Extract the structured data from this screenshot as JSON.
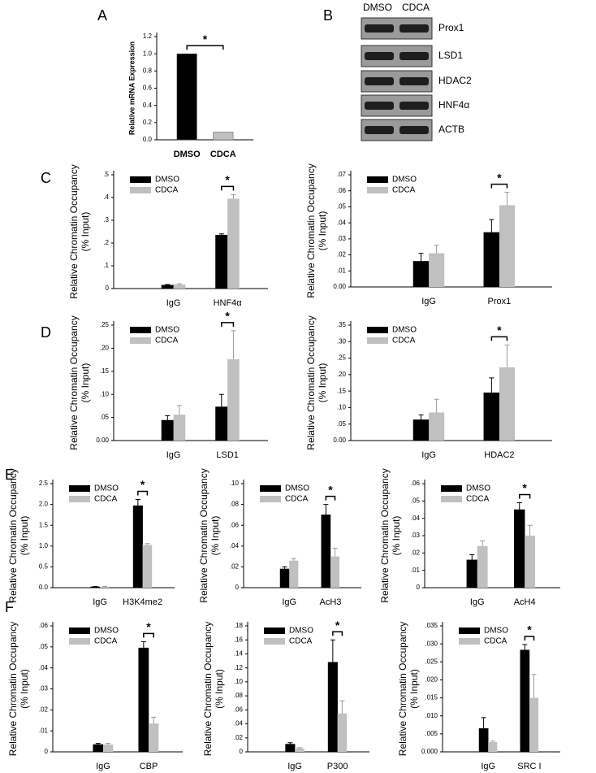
{
  "blot": {
    "panel": "B",
    "columns": [
      "DMSO",
      "CDCA"
    ],
    "rows": [
      "Prox1",
      "LSD1",
      "HDAC2",
      "HNF4α",
      "ACTB"
    ]
  },
  "chart_data": [
    {
      "type": "bar",
      "panel": "A",
      "ylabel": [
        "Relative mRNA Expression"
      ],
      "categories": [
        "DMSO",
        "CDCA"
      ],
      "values": [
        1.0,
        0.09
      ],
      "colors": [
        "#000000",
        "#c0c0c0"
      ],
      "ylim": [
        0,
        1.2
      ],
      "yticks": [
        {
          "value": 0,
          "label": "0.0"
        },
        0.2,
        0.4,
        0.6,
        0.8,
        {
          "value": 1,
          "label": "1.0"
        },
        1.2
      ],
      "annotation": "*"
    },
    {
      "type": "bar",
      "panel": "C",
      "ylabel": [
        "Relative Chromatin Occupancy",
        "(% Input)"
      ],
      "categories": [
        "IgG",
        "HNF4α"
      ],
      "series": [
        {
          "name": "DMSO",
          "color": "#000000",
          "values": [
            0.015,
            0.235
          ],
          "errors": [
            0.003,
            0.005
          ]
        },
        {
          "name": "CDCA",
          "color": "#c0c0c0",
          "values": [
            0.018,
            0.395
          ],
          "errors": [
            0.003,
            0.018
          ]
        }
      ],
      "ylim": [
        0,
        0.5
      ],
      "yticks": [
        0,
        {
          "value": 0.1,
          "label": ".1"
        },
        {
          "value": 0.2,
          "label": ".2"
        },
        {
          "value": 0.3,
          "label": ".3"
        },
        {
          "value": 0.4,
          "label": ".4"
        },
        {
          "value": 0.5,
          "label": ".5"
        }
      ],
      "annotation": "*"
    },
    {
      "type": "bar",
      "ylabel": [
        "Relative Chromatin Occupancy",
        "(% Input)"
      ],
      "categories": [
        "IgG",
        "Prox1"
      ],
      "series": [
        {
          "name": "DMSO",
          "color": "#000000",
          "values": [
            0.016,
            0.034
          ],
          "errors": [
            0.005,
            0.008
          ]
        },
        {
          "name": "CDCA",
          "color": "#c0c0c0",
          "values": [
            0.021,
            0.051
          ],
          "errors": [
            0.005,
            0.008
          ]
        }
      ],
      "ylim": [
        0,
        0.07
      ],
      "yticks": [
        {
          "value": 0,
          "label": "0.00"
        },
        {
          "value": 0.01,
          "label": ".01"
        },
        {
          "value": 0.02,
          "label": ".02"
        },
        {
          "value": 0.03,
          "label": ".03"
        },
        {
          "value": 0.04,
          "label": ".04"
        },
        {
          "value": 0.05,
          "label": ".05"
        },
        {
          "value": 0.06,
          "label": ".06"
        },
        {
          "value": 0.07,
          "label": ".07"
        }
      ],
      "annotation": "*"
    },
    {
      "type": "bar",
      "panel": "D",
      "ylabel": [
        "Relative Chromatin Occupancy",
        "(% Input)"
      ],
      "categories": [
        "IgG",
        "LSD1"
      ],
      "series": [
        {
          "name": "DMSO",
          "color": "#000000",
          "values": [
            0.044,
            0.073
          ],
          "errors": [
            0.01,
            0.027
          ]
        },
        {
          "name": "CDCA",
          "color": "#c0c0c0",
          "values": [
            0.056,
            0.176
          ],
          "errors": [
            0.02,
            0.062
          ]
        }
      ],
      "ylim": [
        0,
        0.25
      ],
      "yticks": [
        {
          "value": 0,
          "label": "0.00"
        },
        {
          "value": 0.05,
          "label": ".05"
        },
        {
          "value": 0.1,
          "label": ".10"
        },
        {
          "value": 0.15,
          "label": ".15"
        },
        {
          "value": 0.2,
          "label": ".20"
        },
        {
          "value": 0.25,
          "label": ".25"
        }
      ],
      "annotation": "*"
    },
    {
      "type": "bar",
      "ylabel": [
        "Relative Chromatin Occupancy",
        "(% Input)"
      ],
      "categories": [
        "IgG",
        "HDAC2"
      ],
      "series": [
        {
          "name": "DMSO",
          "color": "#000000",
          "values": [
            0.063,
            0.145
          ],
          "errors": [
            0.015,
            0.045
          ]
        },
        {
          "name": "CDCA",
          "color": "#c0c0c0",
          "values": [
            0.085,
            0.222
          ],
          "errors": [
            0.04,
            0.068
          ]
        }
      ],
      "ylim": [
        0,
        0.35
      ],
      "yticks": [
        {
          "value": 0,
          "label": "0.00"
        },
        {
          "value": 0.05,
          "label": ".05"
        },
        {
          "value": 0.1,
          "label": ".10"
        },
        {
          "value": 0.15,
          "label": ".15"
        },
        {
          "value": 0.2,
          "label": ".20"
        },
        {
          "value": 0.25,
          "label": ".25"
        },
        {
          "value": 0.3,
          "label": ".30"
        },
        {
          "value": 0.35,
          "label": ".35"
        }
      ],
      "annotation": "*"
    },
    {
      "type": "bar",
      "panel": "E",
      "ylabel": [
        "Relative Chromatin Occupancy",
        "(% Input)"
      ],
      "categories": [
        "IgG",
        "H3K4me2"
      ],
      "series": [
        {
          "name": "DMSO",
          "color": "#000000",
          "values": [
            0.02,
            1.97
          ],
          "errors": [
            0.01,
            0.15
          ]
        },
        {
          "name": "CDCA",
          "color": "#c0c0c0",
          "values": [
            0.02,
            1.03
          ],
          "errors": [
            0.01,
            0.03
          ]
        }
      ],
      "ylim": [
        0,
        2.5
      ],
      "yticks": [
        {
          "value": 0,
          "label": "0.0"
        },
        0.5,
        {
          "value": 1,
          "label": "1.0"
        },
        1.5,
        {
          "value": 2,
          "label": "2.0"
        },
        2.5
      ],
      "annotation": "*"
    },
    {
      "type": "bar",
      "ylabel": [
        "Relative Chromatin Occupancy",
        "(% Input)"
      ],
      "categories": [
        "IgG",
        "AcH3"
      ],
      "series": [
        {
          "name": "DMSO",
          "color": "#000000",
          "values": [
            0.018,
            0.07
          ],
          "errors": [
            0.002,
            0.01
          ]
        },
        {
          "name": "CDCA",
          "color": "#c0c0c0",
          "values": [
            0.026,
            0.03
          ],
          "errors": [
            0.002,
            0.008
          ]
        }
      ],
      "ylim": [
        0,
        0.1
      ],
      "yticks": [
        0,
        {
          "value": 0.02,
          "label": ".02"
        },
        {
          "value": 0.04,
          "label": ".04"
        },
        {
          "value": 0.06,
          "label": ".06"
        },
        {
          "value": 0.08,
          "label": ".08"
        },
        {
          "value": 0.1,
          "label": ".10"
        }
      ],
      "annotation": "*"
    },
    {
      "type": "bar",
      "ylabel": [
        "Relative Chromatin Occupancy",
        "(% Input)"
      ],
      "categories": [
        "IgG",
        "AcH4"
      ],
      "series": [
        {
          "name": "DMSO",
          "color": "#000000",
          "values": [
            0.016,
            0.045
          ],
          "errors": [
            0.003,
            0.004
          ]
        },
        {
          "name": "CDCA",
          "color": "#c0c0c0",
          "values": [
            0.024,
            0.03
          ],
          "errors": [
            0.003,
            0.006
          ]
        }
      ],
      "ylim": [
        0,
        0.06
      ],
      "yticks": [
        0,
        {
          "value": 0.01,
          "label": ".01"
        },
        {
          "value": 0.02,
          "label": ".02"
        },
        {
          "value": 0.03,
          "label": ".03"
        },
        {
          "value": 0.04,
          "label": ".04"
        },
        {
          "value": 0.05,
          "label": ".05"
        },
        {
          "value": 0.06,
          "label": ".06"
        }
      ],
      "annotation": "*"
    },
    {
      "type": "bar",
      "panel": "F",
      "ylabel": [
        "Relative Chromatin Occupancy",
        "(% Input)"
      ],
      "categories": [
        "IgG",
        "CBP"
      ],
      "series": [
        {
          "name": "DMSO",
          "color": "#000000",
          "values": [
            0.0035,
            0.0495
          ],
          "errors": [
            0.0005,
            0.003
          ]
        },
        {
          "name": "CDCA",
          "color": "#c0c0c0",
          "values": [
            0.0035,
            0.0135
          ],
          "errors": [
            0.0005,
            0.003
          ]
        }
      ],
      "ylim": [
        0,
        0.06
      ],
      "yticks": [
        0,
        {
          "value": 0.01,
          "label": ".01"
        },
        {
          "value": 0.02,
          "label": ".02"
        },
        {
          "value": 0.03,
          "label": ".03"
        },
        {
          "value": 0.04,
          "label": ".04"
        },
        {
          "value": 0.05,
          "label": ".05"
        },
        {
          "value": 0.06,
          "label": ".06"
        }
      ],
      "annotation": "*"
    },
    {
      "type": "bar",
      "ylabel": [
        "Relative Chromatin Occupancy",
        "(% Input)"
      ],
      "categories": [
        "IgG",
        "P300"
      ],
      "series": [
        {
          "name": "DMSO",
          "color": "#000000",
          "values": [
            0.011,
            0.128
          ],
          "errors": [
            0.002,
            0.032
          ]
        },
        {
          "name": "CDCA",
          "color": "#c0c0c0",
          "values": [
            0.005,
            0.055
          ],
          "errors": [
            0.001,
            0.018
          ]
        }
      ],
      "ylim": [
        0,
        0.18
      ],
      "yticks": [
        0,
        {
          "value": 0.02,
          "label": ".02"
        },
        {
          "value": 0.04,
          "label": ".04"
        },
        {
          "value": 0.06,
          "label": ".06"
        },
        {
          "value": 0.08,
          "label": ".08"
        },
        {
          "value": 0.1,
          "label": ".10"
        },
        {
          "value": 0.12,
          "label": ".12"
        },
        {
          "value": 0.14,
          "label": ".14"
        },
        {
          "value": 0.16,
          "label": ".16"
        },
        {
          "value": 0.18,
          "label": ".18"
        }
      ],
      "annotation": "*"
    },
    {
      "type": "bar",
      "ylabel": [
        "Relative Chromatin Occupancy",
        "(% Input)"
      ],
      "categories": [
        "IgG",
        "SRC I"
      ],
      "series": [
        {
          "name": "DMSO",
          "color": "#000000",
          "values": [
            0.0065,
            0.0283
          ],
          "errors": [
            0.003,
            0.0015
          ]
        },
        {
          "name": "CDCA",
          "color": "#c0c0c0",
          "values": [
            0.0027,
            0.015
          ],
          "errors": [
            0.0003,
            0.0065
          ]
        }
      ],
      "ylim": [
        0,
        0.035
      ],
      "yticks": [
        {
          "value": 0,
          "label": "0.000"
        },
        {
          "value": 0.005,
          "label": ".005"
        },
        {
          "value": 0.01,
          "label": ".010"
        },
        {
          "value": 0.015,
          "label": ".015"
        },
        {
          "value": 0.02,
          "label": ".020"
        },
        {
          "value": 0.025,
          "label": ".025"
        },
        {
          "value": 0.03,
          "label": ".030"
        },
        {
          "value": 0.035,
          "label": ".035"
        }
      ],
      "annotation": "*"
    }
  ]
}
